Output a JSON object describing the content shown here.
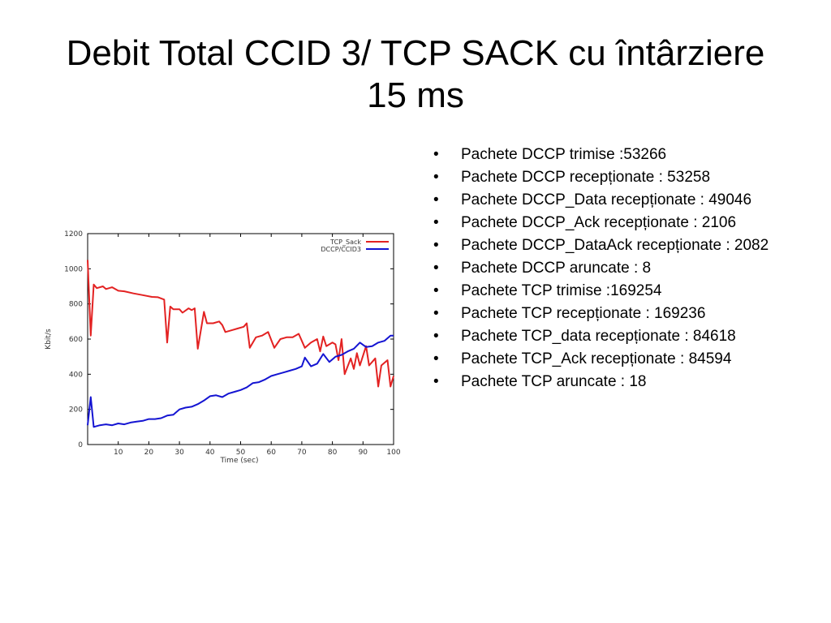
{
  "slide": {
    "title_line1": "Debit Total CCID 3/ TCP SACK cu întârziere",
    "title_line2": "15 ms"
  },
  "bullets": [
    "Pachete DCCP trimise :53266",
    " Pachete DCCP recepționate : 53258",
    " Pachete DCCP_Data recepționate : 49046",
    " Pachete DCCP_Ack recepționate : 2106",
    " Pachete DCCP_DataAck recepționate : 2082",
    " Pachete DCCP aruncate : 8",
    " Pachete TCP trimise :169254",
    " Pachete TCP recepționate : 169236",
    " Pachete TCP_data recepționate : 84618",
    " Pachete TCP_Ack recepționate : 84594",
    " Pachete TCP aruncate : 18"
  ],
  "chart_data": {
    "type": "line",
    "xlabel": "Time (sec)",
    "ylabel": "Kbit/s",
    "xlim": [
      0,
      100
    ],
    "ylim": [
      0,
      1200
    ],
    "xticks": [
      10,
      20,
      30,
      40,
      50,
      60,
      70,
      80,
      90,
      100
    ],
    "yticks": [
      0,
      200,
      400,
      600,
      800,
      1000,
      1200
    ],
    "grid": false,
    "legend": "top-right",
    "series": [
      {
        "name": "TCP_Sack",
        "color": "#e32222",
        "points": [
          [
            0,
            1050
          ],
          [
            1,
            620
          ],
          [
            2,
            910
          ],
          [
            3,
            890
          ],
          [
            5,
            900
          ],
          [
            6,
            885
          ],
          [
            8,
            895
          ],
          [
            10,
            875
          ],
          [
            12,
            872
          ],
          [
            15,
            860
          ],
          [
            18,
            850
          ],
          [
            21,
            840
          ],
          [
            23,
            838
          ],
          [
            25,
            825
          ],
          [
            26,
            580
          ],
          [
            27,
            785
          ],
          [
            28,
            770
          ],
          [
            30,
            770
          ],
          [
            31,
            750
          ],
          [
            33,
            775
          ],
          [
            34,
            765
          ],
          [
            35,
            775
          ],
          [
            36,
            545
          ],
          [
            38,
            755
          ],
          [
            39,
            690
          ],
          [
            41,
            690
          ],
          [
            43,
            700
          ],
          [
            44,
            680
          ],
          [
            45,
            640
          ],
          [
            47,
            650
          ],
          [
            49,
            660
          ],
          [
            51,
            670
          ],
          [
            52,
            690
          ],
          [
            53,
            550
          ],
          [
            55,
            610
          ],
          [
            57,
            620
          ],
          [
            59,
            640
          ],
          [
            61,
            550
          ],
          [
            63,
            600
          ],
          [
            65,
            610
          ],
          [
            67,
            610
          ],
          [
            69,
            630
          ],
          [
            71,
            550
          ],
          [
            73,
            580
          ],
          [
            75,
            600
          ],
          [
            76,
            530
          ],
          [
            77,
            615
          ],
          [
            78,
            560
          ],
          [
            80,
            580
          ],
          [
            81,
            570
          ],
          [
            82,
            480
          ],
          [
            83,
            600
          ],
          [
            84,
            400
          ],
          [
            86,
            490
          ],
          [
            87,
            430
          ],
          [
            88,
            520
          ],
          [
            89,
            450
          ],
          [
            91,
            560
          ],
          [
            92,
            450
          ],
          [
            93,
            470
          ],
          [
            94,
            490
          ],
          [
            95,
            330
          ],
          [
            96,
            450
          ],
          [
            98,
            480
          ],
          [
            99,
            330
          ],
          [
            100,
            390
          ]
        ]
      },
      {
        "name": "DCCP/CCID3",
        "color": "#1414d2",
        "points": [
          [
            0,
            110
          ],
          [
            1,
            270
          ],
          [
            2,
            100
          ],
          [
            4,
            110
          ],
          [
            6,
            115
          ],
          [
            8,
            110
          ],
          [
            10,
            120
          ],
          [
            12,
            115
          ],
          [
            14,
            125
          ],
          [
            16,
            130
          ],
          [
            18,
            135
          ],
          [
            20,
            145
          ],
          [
            22,
            145
          ],
          [
            24,
            150
          ],
          [
            26,
            165
          ],
          [
            28,
            170
          ],
          [
            30,
            200
          ],
          [
            32,
            210
          ],
          [
            34,
            215
          ],
          [
            36,
            230
          ],
          [
            38,
            250
          ],
          [
            40,
            275
          ],
          [
            42,
            280
          ],
          [
            44,
            270
          ],
          [
            46,
            290
          ],
          [
            48,
            300
          ],
          [
            50,
            310
          ],
          [
            52,
            325
          ],
          [
            54,
            350
          ],
          [
            56,
            355
          ],
          [
            58,
            370
          ],
          [
            60,
            390
          ],
          [
            62,
            400
          ],
          [
            64,
            410
          ],
          [
            66,
            420
          ],
          [
            68,
            430
          ],
          [
            70,
            445
          ],
          [
            71,
            495
          ],
          [
            73,
            445
          ],
          [
            75,
            460
          ],
          [
            77,
            515
          ],
          [
            79,
            470
          ],
          [
            81,
            500
          ],
          [
            83,
            510
          ],
          [
            85,
            530
          ],
          [
            87,
            545
          ],
          [
            89,
            580
          ],
          [
            91,
            555
          ],
          [
            93,
            560
          ],
          [
            95,
            580
          ],
          [
            97,
            590
          ],
          [
            99,
            620
          ],
          [
            100,
            620
          ]
        ]
      }
    ]
  }
}
